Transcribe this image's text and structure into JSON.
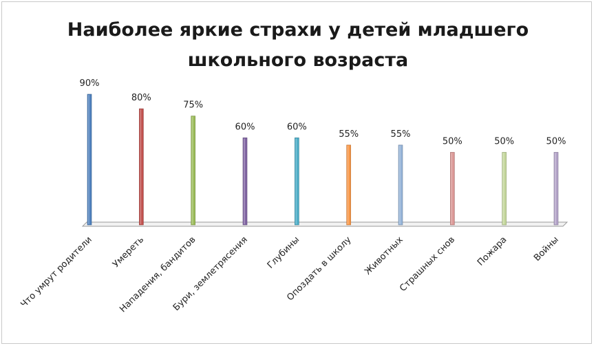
{
  "chart_data": {
    "type": "bar",
    "title_lines": [
      "Наиболее яркие страхи у детей младшего",
      "школьного возраста"
    ],
    "categories": [
      "Что умрут родители",
      "Умереть",
      "Нападения, бандитов",
      "Бури, землетрясения",
      "Глубины",
      "Опоздать в школу",
      "Животных",
      "Страшных снов",
      "Пожара",
      "Войны"
    ],
    "values": [
      90,
      80,
      75,
      60,
      60,
      55,
      55,
      50,
      50,
      50
    ],
    "value_labels": [
      "90%",
      "80%",
      "75%",
      "60%",
      "60%",
      "55%",
      "55%",
      "50%",
      "50%",
      "50%"
    ],
    "colors": [
      "#4f81bd",
      "#c0504d",
      "#9bbb59",
      "#8064a2",
      "#4bacc6",
      "#f79646",
      "#95b3d7",
      "#d99694",
      "#c3d69b",
      "#b2a2c7"
    ],
    "ylim": [
      0,
      100
    ],
    "grid": false,
    "legend": "none"
  }
}
